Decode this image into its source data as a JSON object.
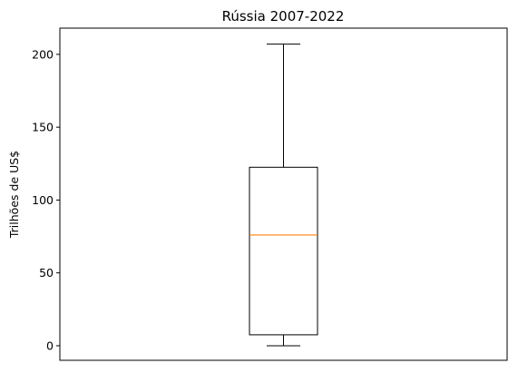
{
  "chart_data": {
    "type": "box",
    "title": "Rússia 2007-2022",
    "xlabel": "",
    "ylabel": "Trilhões de US$",
    "ylim": [
      -10,
      218
    ],
    "yticks": [
      0,
      50,
      100,
      150,
      200
    ],
    "ytick_labels": [
      "0",
      "50",
      "100",
      "150",
      "200"
    ],
    "xtick_labels": [],
    "grid": false,
    "boxes": [
      {
        "whisker_low": 0,
        "q1": 7.5,
        "median": 76,
        "q3": 122.5,
        "whisker_high": 207
      }
    ],
    "colors": {
      "box": "#000000",
      "median": "#ff7f0e",
      "axes": "#000000"
    }
  }
}
